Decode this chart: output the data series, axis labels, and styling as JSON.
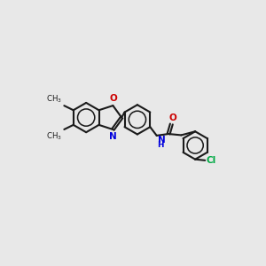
{
  "bg": "#e8e8e8",
  "bc": "#1a1a1a",
  "Nc": "#0000dd",
  "Oc": "#cc0000",
  "Clc": "#00aa44",
  "lw": 1.5,
  "fs": 7.5,
  "figsize": [
    3.0,
    3.0
  ],
  "dpi": 100,
  "methyl_labels": [
    "",
    ""
  ],
  "atom_labels": {
    "O_oxazole": "O",
    "N_oxazole": "N",
    "O_carbonyl": "O",
    "NH": "NH",
    "H": "H",
    "Cl": "Cl"
  }
}
